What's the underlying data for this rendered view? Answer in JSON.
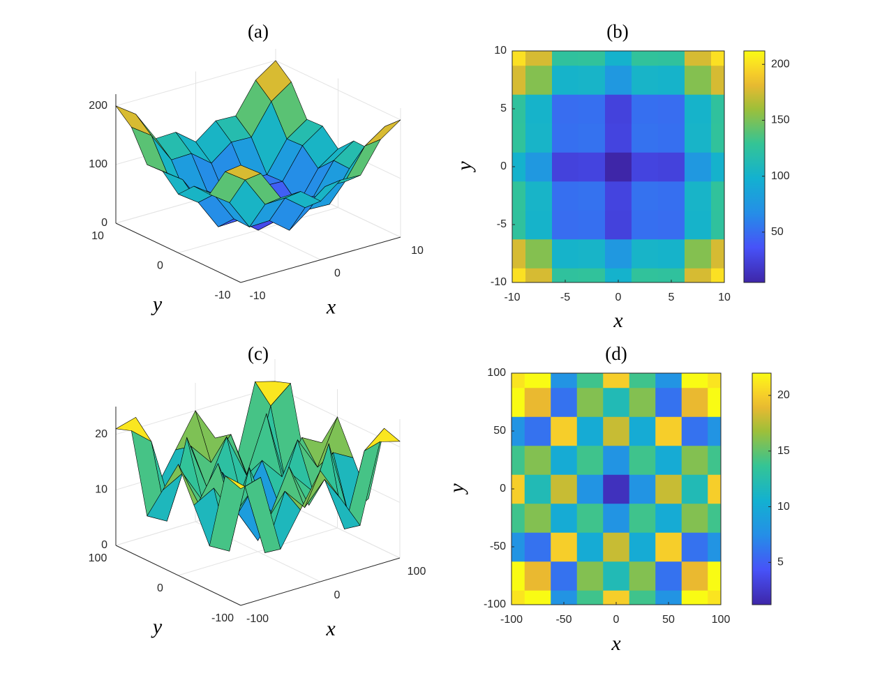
{
  "chart_data": [
    {
      "type": "surface",
      "title": "(a)",
      "x_label": "x",
      "y_label": "y",
      "colormap": "parula",
      "x": [
        -10,
        -7.5,
        -5,
        -2.5,
        0,
        2.5,
        5,
        7.5,
        10
      ],
      "y": [
        -10,
        -7.5,
        -5,
        -2.5,
        0,
        2.5,
        5,
        7.5,
        10
      ],
      "z": [
        [
          200,
          176.25,
          125,
          126.25,
          100,
          126.25,
          125,
          176.25,
          200
        ],
        [
          176.25,
          152.5,
          101.25,
          102.5,
          76.25,
          102.5,
          101.25,
          152.5,
          176.25
        ],
        [
          125,
          101.25,
          50,
          51.25,
          25,
          51.25,
          50,
          101.25,
          125
        ],
        [
          126.25,
          102.5,
          51.25,
          52.5,
          26.25,
          52.5,
          51.25,
          102.5,
          126.25
        ],
        [
          100,
          76.25,
          25,
          26.25,
          0,
          26.25,
          25,
          76.25,
          100
        ],
        [
          126.25,
          102.5,
          51.25,
          52.5,
          26.25,
          52.5,
          51.25,
          102.5,
          126.25
        ],
        [
          125,
          101.25,
          50,
          51.25,
          25,
          51.25,
          50,
          101.25,
          125
        ],
        [
          176.25,
          152.5,
          101.25,
          102.5,
          76.25,
          102.5,
          101.25,
          152.5,
          176.25
        ],
        [
          200,
          176.25,
          125,
          126.25,
          100,
          126.25,
          125,
          176.25,
          200
        ]
      ],
      "xlim": [
        -10,
        10
      ],
      "ylim": [
        -10,
        10
      ],
      "zlim": [
        0,
        220
      ],
      "clim": [
        0,
        212
      ],
      "xticks": [
        -10,
        0,
        10
      ],
      "yticks": [
        -10,
        0,
        10
      ],
      "zticks": [
        0,
        100,
        200
      ],
      "grid": true
    },
    {
      "type": "contour",
      "title": "(b)",
      "x_label": "x",
      "y_label": "y",
      "colormap": "parula",
      "colorbar": true,
      "x": [
        -10,
        -7.5,
        -5,
        -2.5,
        0,
        2.5,
        5,
        7.5,
        10
      ],
      "y": [
        -10,
        -7.5,
        -5,
        -2.5,
        0,
        2.5,
        5,
        7.5,
        10
      ],
      "z": [
        [
          200,
          176.25,
          125,
          126.25,
          100,
          126.25,
          125,
          176.25,
          200
        ],
        [
          176.25,
          152.5,
          101.25,
          102.5,
          76.25,
          102.5,
          101.25,
          152.5,
          176.25
        ],
        [
          125,
          101.25,
          50,
          51.25,
          25,
          51.25,
          50,
          101.25,
          125
        ],
        [
          126.25,
          102.5,
          51.25,
          52.5,
          26.25,
          52.5,
          51.25,
          102.5,
          126.25
        ],
        [
          100,
          76.25,
          25,
          26.25,
          0,
          26.25,
          25,
          76.25,
          100
        ],
        [
          126.25,
          102.5,
          51.25,
          52.5,
          26.25,
          52.5,
          51.25,
          102.5,
          126.25
        ],
        [
          125,
          101.25,
          50,
          51.25,
          25,
          51.25,
          50,
          101.25,
          125
        ],
        [
          176.25,
          152.5,
          101.25,
          102.5,
          76.25,
          102.5,
          101.25,
          152.5,
          176.25
        ],
        [
          200,
          176.25,
          125,
          126.25,
          100,
          126.25,
          125,
          176.25,
          200
        ]
      ],
      "xlim": [
        -10,
        10
      ],
      "ylim": [
        -10,
        10
      ],
      "clim": [
        5,
        212
      ],
      "xticks": [
        -10,
        -5,
        0,
        5,
        10
      ],
      "yticks": [
        -10,
        -5,
        0,
        5,
        10
      ],
      "cticks": [
        50,
        100,
        150,
        200
      ]
    },
    {
      "type": "surface",
      "title": "(c)",
      "x_label": "x",
      "y_label": "y",
      "colormap": "parula",
      "x": [
        -100,
        -75,
        -50,
        -25,
        0,
        25,
        50,
        75,
        100
      ],
      "y": [
        -100,
        -75,
        -50,
        -25,
        0,
        25,
        50,
        75,
        100
      ],
      "z": [
        [
          21,
          22,
          8,
          14,
          20,
          14,
          8,
          22,
          21
        ],
        [
          22,
          19,
          6,
          16,
          12,
          16,
          6,
          19,
          22
        ],
        [
          8,
          6,
          20,
          10,
          18,
          10,
          20,
          6,
          8
        ],
        [
          14,
          16,
          10,
          14,
          8,
          14,
          10,
          16,
          14
        ],
        [
          20,
          12,
          18,
          8,
          2,
          8,
          18,
          12,
          20
        ],
        [
          14,
          16,
          10,
          14,
          8,
          14,
          10,
          16,
          14
        ],
        [
          8,
          6,
          20,
          10,
          18,
          10,
          20,
          6,
          8
        ],
        [
          22,
          19,
          6,
          16,
          12,
          16,
          6,
          19,
          22
        ],
        [
          21,
          22,
          8,
          14,
          20,
          14,
          8,
          22,
          21
        ]
      ],
      "xlim": [
        -100,
        100
      ],
      "ylim": [
        -100,
        100
      ],
      "zlim": [
        0,
        25
      ],
      "clim": [
        0,
        22
      ],
      "xticks": [
        -100,
        0,
        100
      ],
      "yticks": [
        -100,
        0,
        100
      ],
      "zticks": [
        0,
        10,
        20
      ],
      "grid": true
    },
    {
      "type": "contour",
      "title": "(d)",
      "x_label": "x",
      "y_label": "y",
      "colormap": "parula",
      "colorbar": true,
      "x": [
        -100,
        -75,
        -50,
        -25,
        0,
        25,
        50,
        75,
        100
      ],
      "y": [
        -100,
        -75,
        -50,
        -25,
        0,
        25,
        50,
        75,
        100
      ],
      "z": [
        [
          21,
          22,
          8,
          14,
          20,
          14,
          8,
          22,
          21
        ],
        [
          22,
          19,
          6,
          16,
          12,
          16,
          6,
          19,
          22
        ],
        [
          8,
          6,
          20,
          10,
          18,
          10,
          20,
          6,
          8
        ],
        [
          14,
          16,
          10,
          14,
          8,
          14,
          10,
          16,
          14
        ],
        [
          20,
          12,
          18,
          8,
          2,
          8,
          18,
          12,
          20
        ],
        [
          14,
          16,
          10,
          14,
          8,
          14,
          10,
          16,
          14
        ],
        [
          8,
          6,
          20,
          10,
          18,
          10,
          20,
          6,
          8
        ],
        [
          22,
          19,
          6,
          16,
          12,
          16,
          6,
          19,
          22
        ],
        [
          21,
          22,
          8,
          14,
          20,
          14,
          8,
          22,
          21
        ]
      ],
      "xlim": [
        -100,
        100
      ],
      "ylim": [
        -100,
        100
      ],
      "clim": [
        1.2,
        22
      ],
      "xticks": [
        -100,
        -50,
        0,
        50,
        100
      ],
      "yticks": [
        -100,
        -50,
        0,
        50,
        100
      ],
      "cticks": [
        5,
        10,
        15,
        20
      ]
    }
  ]
}
